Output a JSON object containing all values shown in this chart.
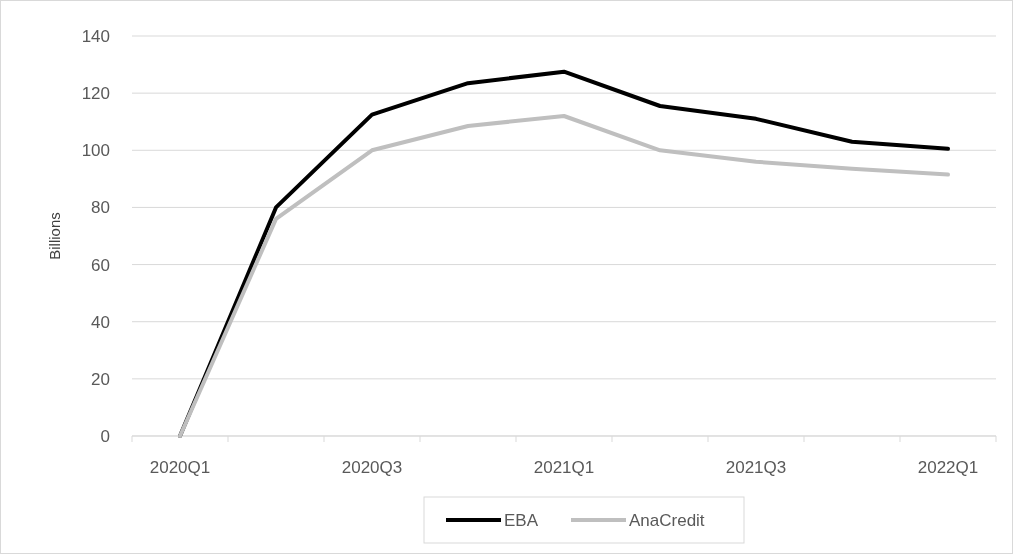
{
  "chart_data": {
    "type": "line",
    "ylabel": "Billions",
    "categories": [
      "2020Q1",
      null,
      "2020Q3",
      null,
      "2021Q1",
      null,
      "2021Q3",
      null,
      "2022Q1"
    ],
    "series": [
      {
        "name": "EBA",
        "color": "#000000",
        "values": [
          0,
          80,
          112.5,
          123.5,
          127.5,
          115.5,
          111,
          103,
          100.5
        ]
      },
      {
        "name": "AnaCredit",
        "color": "#bfbfbf",
        "values": [
          0,
          76,
          100,
          108.5,
          112,
          100,
          96,
          93.5,
          91.5
        ]
      }
    ],
    "ylim": [
      0,
      140
    ],
    "yticks": [
      0,
      20,
      40,
      60,
      80,
      100,
      120,
      140
    ],
    "grid": "y",
    "legend": "bottom",
    "marker": "none",
    "line_style": "solid"
  }
}
